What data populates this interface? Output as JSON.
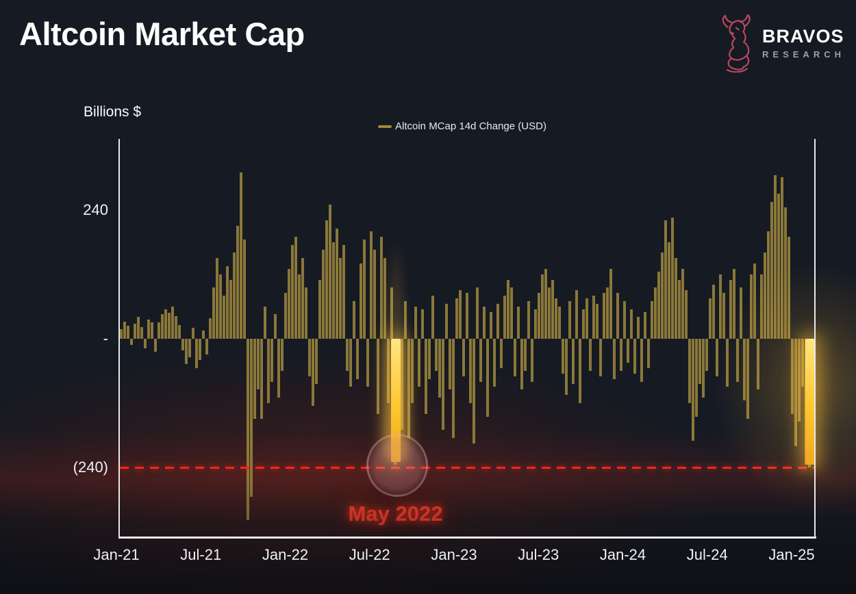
{
  "header": {
    "title": "Altcoin Market Cap",
    "brand_name": "BRAVOS",
    "brand_sub": "RESEARCH",
    "brand_accent": "#b5485c"
  },
  "chart_data": {
    "type": "bar",
    "title": "Altcoin Market Cap",
    "ylabel": "Billions $",
    "legend_label": "Altcoin MCap 14d Change (USD)",
    "legend_swatch_color": "#a18834",
    "unit": "billions USD",
    "grid": false,
    "bar_color": "#8b7839",
    "highlight_color": "#ffd23f",
    "x_tick_labels": [
      "Jan-21",
      "Jul-21",
      "Jan-22",
      "Jul-22",
      "Jan-23",
      "Jul-23",
      "Jan-24",
      "Jul-24",
      "Jan-25"
    ],
    "y_ticks": [
      {
        "label": "240",
        "value": 240
      },
      {
        "label": "-",
        "value": 0
      },
      {
        "label": "(240)",
        "value": -240
      }
    ],
    "ylim": [
      -370,
      372
    ],
    "reference_line": {
      "value": -240,
      "color": "#ff2318",
      "style": "dashed"
    },
    "annotation": {
      "text": "May 2022",
      "color": "#ee3a2c",
      "index": 80
    },
    "highlights": [
      {
        "name": "may-2022-crash",
        "index": 80,
        "value": -235
      },
      {
        "name": "jan-2025-drop",
        "index": 201,
        "value": -240
      }
    ],
    "values": [
      18,
      32,
      24,
      -12,
      28,
      40,
      22,
      -18,
      35,
      30,
      -25,
      30,
      45,
      55,
      48,
      60,
      42,
      25,
      -22,
      -48,
      -35,
      20,
      -55,
      -40,
      15,
      -30,
      38,
      95,
      150,
      120,
      80,
      135,
      110,
      160,
      210,
      310,
      185,
      -338,
      -295,
      -150,
      -95,
      -150,
      60,
      -120,
      -80,
      45,
      -110,
      -60,
      85,
      130,
      175,
      190,
      120,
      150,
      95,
      -70,
      -125,
      -85,
      110,
      165,
      220,
      250,
      180,
      205,
      150,
      175,
      -60,
      -90,
      70,
      -75,
      140,
      185,
      -90,
      200,
      165,
      -140,
      190,
      150,
      -120,
      95,
      -235,
      -150,
      -170,
      70,
      -185,
      -120,
      60,
      -90,
      55,
      -140,
      -75,
      80,
      -60,
      -110,
      -170,
      65,
      -95,
      -185,
      75,
      90,
      -70,
      85,
      -120,
      -195,
      95,
      -80,
      60,
      -145,
      50,
      -90,
      65,
      -55,
      80,
      110,
      95,
      -70,
      60,
      -95,
      -60,
      70,
      -80,
      55,
      85,
      120,
      130,
      95,
      110,
      75,
      60,
      -65,
      -105,
      70,
      -85,
      90,
      -120,
      55,
      75,
      -60,
      80,
      65,
      -70,
      85,
      95,
      130,
      -75,
      85,
      -60,
      70,
      -45,
      55,
      -65,
      40,
      -80,
      50,
      -55,
      70,
      95,
      125,
      160,
      220,
      180,
      225,
      150,
      110,
      130,
      90,
      -120,
      -190,
      -145,
      -85,
      -110,
      -60,
      75,
      100,
      -70,
      120,
      85,
      -90,
      110,
      130,
      -80,
      95,
      -115,
      -150,
      120,
      140,
      -95,
      120,
      160,
      200,
      255,
      305,
      270,
      300,
      245,
      190,
      -140,
      -200,
      -155,
      -90,
      -235,
      -240,
      -230
    ]
  }
}
